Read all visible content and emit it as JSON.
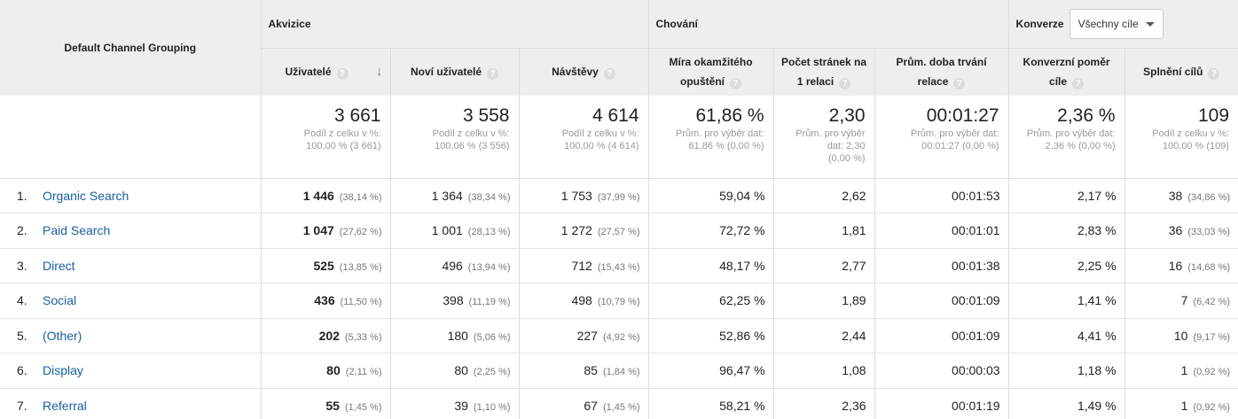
{
  "header": {
    "dimension_label": "Default Channel Grouping",
    "groups": {
      "acquisition": "Akvizice",
      "behavior": "Chování",
      "conversions": "Konverze"
    },
    "goal_select": {
      "value": "Všechny cíle"
    },
    "columns": {
      "users": "Uživatelé",
      "new_users": "Noví uživatelé",
      "sessions": "Návštěvy",
      "bounce_rate_l1": "Míra okamžitého",
      "bounce_rate_l2": "opuštění",
      "pages_l1": "Počet stránek na",
      "pages_l2": "1 relaci",
      "duration_l1": "Prům. doba trvání",
      "duration_l2": "relace",
      "conv_rate_l1": "Konverzní poměr",
      "conv_rate_l2": "cíle",
      "goal_completions": "Splnění cílů"
    },
    "help_icon_glyph": "?",
    "sort_icon_glyph": "↓"
  },
  "totals": [
    {
      "value": "3 661",
      "sub1": "Podíl z celku v %:",
      "sub2": "100,00 % (3 661)",
      "sub3": ""
    },
    {
      "value": "3 558",
      "sub1": "Podíl z celku v %:",
      "sub2": "100,06 % (3 556)",
      "sub3": ""
    },
    {
      "value": "4 614",
      "sub1": "Podíl z celku v %:",
      "sub2": "100,00 % (4 614)",
      "sub3": ""
    },
    {
      "value": "61,86 %",
      "sub1": "Prům. pro výběr dat:",
      "sub2": "61,86 % (0,00 %)",
      "sub3": ""
    },
    {
      "value": "2,30",
      "sub1": "Prům. pro výběr",
      "sub2": "dat: 2,30",
      "sub3": "(0,00 %)"
    },
    {
      "value": "00:01:27",
      "sub1": "Prům. pro výběr dat:",
      "sub2": "00:01:27 (0,00 %)",
      "sub3": ""
    },
    {
      "value": "2,36 %",
      "sub1": "Prům. pro výběr dat:",
      "sub2": "2,36 % (0,00 %)",
      "sub3": ""
    },
    {
      "value": "109",
      "sub1": "Podíl z celku v %:",
      "sub2": "100,00 % (109)",
      "sub3": ""
    }
  ],
  "rows": [
    {
      "num": "1.",
      "channel": "Organic Search",
      "users": "1 446",
      "users_pct": "(38,14 %)",
      "new_users": "1 364",
      "new_users_pct": "(38,34 %)",
      "sessions": "1 753",
      "sessions_pct": "(37,99 %)",
      "bounce": "59,04 %",
      "pages": "2,62",
      "duration": "00:01:53",
      "conv_rate": "2,17 %",
      "goals": "38",
      "goals_pct": "(34,86 %)"
    },
    {
      "num": "2.",
      "channel": "Paid Search",
      "users": "1 047",
      "users_pct": "(27,62 %)",
      "new_users": "1 001",
      "new_users_pct": "(28,13 %)",
      "sessions": "1 272",
      "sessions_pct": "(27,57 %)",
      "bounce": "72,72 %",
      "pages": "1,81",
      "duration": "00:01:01",
      "conv_rate": "2,83 %",
      "goals": "36",
      "goals_pct": "(33,03 %)"
    },
    {
      "num": "3.",
      "channel": "Direct",
      "users": "525",
      "users_pct": "(13,85 %)",
      "new_users": "496",
      "new_users_pct": "(13,94 %)",
      "sessions": "712",
      "sessions_pct": "(15,43 %)",
      "bounce": "48,17 %",
      "pages": "2,77",
      "duration": "00:01:38",
      "conv_rate": "2,25 %",
      "goals": "16",
      "goals_pct": "(14,68 %)"
    },
    {
      "num": "4.",
      "channel": "Social",
      "users": "436",
      "users_pct": "(11,50 %)",
      "new_users": "398",
      "new_users_pct": "(11,19 %)",
      "sessions": "498",
      "sessions_pct": "(10,79 %)",
      "bounce": "62,25 %",
      "pages": "1,89",
      "duration": "00:01:09",
      "conv_rate": "1,41 %",
      "goals": "7",
      "goals_pct": "(6,42 %)"
    },
    {
      "num": "5.",
      "channel": "(Other)",
      "users": "202",
      "users_pct": "(5,33 %)",
      "new_users": "180",
      "new_users_pct": "(5,06 %)",
      "sessions": "227",
      "sessions_pct": "(4,92 %)",
      "bounce": "52,86 %",
      "pages": "2,44",
      "duration": "00:01:09",
      "conv_rate": "4,41 %",
      "goals": "10",
      "goals_pct": "(9,17 %)"
    },
    {
      "num": "6.",
      "channel": "Display",
      "users": "80",
      "users_pct": "(2,11 %)",
      "new_users": "80",
      "new_users_pct": "(2,25 %)",
      "sessions": "85",
      "sessions_pct": "(1,84 %)",
      "bounce": "96,47 %",
      "pages": "1,08",
      "duration": "00:00:03",
      "conv_rate": "1,18 %",
      "goals": "1",
      "goals_pct": "(0,92 %)"
    },
    {
      "num": "7.",
      "channel": "Referral",
      "users": "55",
      "users_pct": "(1,45 %)",
      "new_users": "39",
      "new_users_pct": "(1,10 %)",
      "sessions": "67",
      "sessions_pct": "(1,45 %)",
      "bounce": "58,21 %",
      "pages": "2,36",
      "duration": "00:01:19",
      "conv_rate": "1,49 %",
      "goals": "1",
      "goals_pct": "(0,92 %)"
    }
  ],
  "colors": {
    "link": "#1a5ea0",
    "header_bg": "#eeeeee",
    "border": "#dddddd",
    "muted": "#999999"
  }
}
